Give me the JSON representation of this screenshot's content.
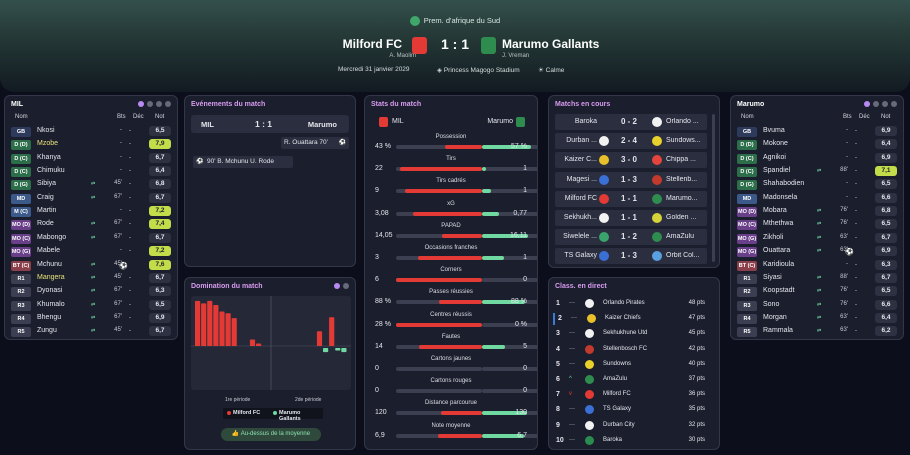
{
  "competition": "Prem. d'afrique du Sud",
  "home": {
    "name": "Milford FC",
    "coach": "A. Maolim",
    "short": "MIL"
  },
  "away": {
    "name": "Marumo Gallants",
    "coach": "J. Vreman",
    "short": "Marumo"
  },
  "score": "1 : 1",
  "date": "Mercredi 31 janvier 2029",
  "stadium": "Princess Magogo Stadium",
  "weather": "Calme",
  "colors": {
    "home": "#e33a36",
    "away": "#6fd9a1",
    "accent": "#d89cf0",
    "rating_high": "#c2dc4a"
  },
  "lineup_headers": {
    "name": "Nom",
    "bts": "Bts",
    "dec": "Déc",
    "note": "Not"
  },
  "home_lineup": [
    {
      "pos": "GB",
      "name": "Nkosi",
      "bts": "-",
      "dec": "-",
      "note": "6,5",
      "hl": false,
      "nh": ""
    },
    {
      "pos": "D (D)",
      "name": "Mzobe",
      "bts": "-",
      "dec": "-",
      "note": "7,9",
      "hl": true,
      "nh": "g"
    },
    {
      "pos": "D (C)",
      "name": "Khanya",
      "bts": "-",
      "dec": "-",
      "note": "6,7",
      "hl": false,
      "nh": ""
    },
    {
      "pos": "D (C)",
      "name": "Chimuku",
      "bts": "-",
      "dec": "-",
      "note": "6,4",
      "hl": false,
      "nh": ""
    },
    {
      "pos": "D (G)",
      "name": "Sibiya",
      "bts": "45'",
      "dec": "-",
      "note": "6,8",
      "hl": false,
      "nh": "",
      "sub": true
    },
    {
      "pos": "MD",
      "name": "Craig",
      "bts": "67'",
      "dec": "-",
      "note": "6,7",
      "hl": false,
      "nh": "",
      "sub": true
    },
    {
      "pos": "M (C)",
      "name": "Martin",
      "bts": "-",
      "dec": "-",
      "note": "7,2",
      "hl": false,
      "nh": "g"
    },
    {
      "pos": "MO (D)",
      "name": "Rode",
      "bts": "67'",
      "dec": "-",
      "note": "7,4",
      "hl": false,
      "nh": "g",
      "sub": true
    },
    {
      "pos": "MO (C)",
      "name": "Mabongo",
      "bts": "67'",
      "dec": "-",
      "note": "6,7",
      "hl": false,
      "nh": "",
      "sub": true
    },
    {
      "pos": "MO (G)",
      "name": "Mabele",
      "bts": "-",
      "dec": "-",
      "note": "7,2",
      "hl": false,
      "nh": "g"
    },
    {
      "pos": "BT (C)",
      "name": "Mchunu",
      "bts": "45'",
      "dec": "",
      "note": "7,6",
      "hl": false,
      "nh": "g",
      "sub": true,
      "ball": true
    },
    {
      "pos": "R1",
      "name": "Mangera",
      "bts": "45'",
      "dec": "-",
      "note": "6,7",
      "hl": true,
      "nh": "",
      "sub": true
    },
    {
      "pos": "R2",
      "name": "Dyonasi",
      "bts": "67'",
      "dec": "-",
      "note": "6,3",
      "hl": false,
      "nh": "",
      "sub": true
    },
    {
      "pos": "R3",
      "name": "Khumalo",
      "bts": "67'",
      "dec": "-",
      "note": "6,5",
      "hl": false,
      "nh": "",
      "sub": true
    },
    {
      "pos": "R4",
      "name": "Bhengu",
      "bts": "67'",
      "dec": "-",
      "note": "6,9",
      "hl": false,
      "nh": "",
      "sub": true
    },
    {
      "pos": "R5",
      "name": "Zungu",
      "bts": "45'",
      "dec": "-",
      "note": "6,7",
      "hl": false,
      "nh": "",
      "sub": true
    }
  ],
  "away_lineup": [
    {
      "pos": "GB",
      "name": "Bvuma",
      "bts": "-",
      "dec": "-",
      "note": "6,9",
      "nh": ""
    },
    {
      "pos": "D (D)",
      "name": "Mokone",
      "bts": "-",
      "dec": "-",
      "note": "6,4",
      "nh": ""
    },
    {
      "pos": "D (C)",
      "name": "Agnikoi",
      "bts": "-",
      "dec": "-",
      "note": "6,9",
      "nh": ""
    },
    {
      "pos": "D (C)",
      "name": "Spandiel",
      "bts": "88'",
      "dec": "-",
      "note": "7,1",
      "nh": "g",
      "sub": true
    },
    {
      "pos": "D (G)",
      "name": "Shahabodien",
      "bts": "-",
      "dec": "-",
      "note": "6,5",
      "nh": ""
    },
    {
      "pos": "MD",
      "name": "Madonsela",
      "bts": "-",
      "dec": "-",
      "note": "6,6",
      "nh": ""
    },
    {
      "pos": "MO (D)",
      "name": "Mobara",
      "bts": "76'",
      "dec": "-",
      "note": "6,8",
      "nh": "",
      "sub": true
    },
    {
      "pos": "MO (C)",
      "name": "Mthethwa",
      "bts": "76'",
      "dec": "-",
      "note": "6,5",
      "nh": "",
      "sub": true
    },
    {
      "pos": "MO (G)",
      "name": "Zikholi",
      "bts": "63'",
      "dec": "-",
      "note": "6,7",
      "nh": "",
      "sub": true
    },
    {
      "pos": "MO (G)",
      "name": "Ouattara",
      "bts": "63'",
      "dec": "",
      "note": "6,9",
      "nh": "",
      "sub": true,
      "ball": true
    },
    {
      "pos": "BT (C)",
      "name": "Karidioula",
      "bts": "-",
      "dec": "-",
      "note": "6,3",
      "nh": ""
    },
    {
      "pos": "R1",
      "name": "Siyasi",
      "bts": "88'",
      "dec": "-",
      "note": "6,7",
      "nh": "",
      "sub": true
    },
    {
      "pos": "R2",
      "name": "Koopstadt",
      "bts": "76'",
      "dec": "-",
      "note": "6,5",
      "nh": "",
      "sub": true
    },
    {
      "pos": "R3",
      "name": "Sono",
      "bts": "76'",
      "dec": "-",
      "note": "6,6",
      "nh": "",
      "sub": true
    },
    {
      "pos": "R4",
      "name": "Morgan",
      "bts": "63'",
      "dec": "-",
      "note": "6,4",
      "nh": "",
      "sub": true
    },
    {
      "pos": "R5",
      "name": "Rammala",
      "bts": "63'",
      "dec": "-",
      "note": "6,2",
      "nh": "",
      "sub": true
    }
  ],
  "events": {
    "title": "Evénements du match",
    "home": "MIL",
    "score": "1 : 1",
    "away": "Marumo",
    "goal_away": "R. Ouattara 70'",
    "goal_home": "90' B. Mchunu U. Rode"
  },
  "domination": {
    "title": "Domination du match",
    "period1": "1re période",
    "period2": "2de période",
    "legend_home": "Milford FC",
    "legend_away": "Marumo Gallants",
    "summary": "Au-dessus de la moyenne",
    "bars": [
      55,
      52,
      55,
      50,
      42,
      40,
      34,
      0,
      0,
      8,
      3,
      0,
      0,
      0,
      0,
      0,
      0,
      0,
      0,
      18,
      -5,
      35,
      -3,
      -5
    ]
  },
  "stats": {
    "title": "Stats du match",
    "home": "MIL",
    "away": "Marumo",
    "rows": [
      {
        "label": "Possession",
        "h": "43 %",
        "a": "57 %",
        "hv": 43,
        "av": 57
      },
      {
        "label": "Tirs",
        "h": "22",
        "a": "1",
        "hv": 22,
        "av": 1
      },
      {
        "label": "Tirs cadrés",
        "h": "9",
        "a": "1",
        "hv": 9,
        "av": 1
      },
      {
        "label": "xG",
        "h": "3,08",
        "a": "0,77",
        "hv": 3.08,
        "av": 0.77
      },
      {
        "label": "PAPAD",
        "h": "14,05",
        "a": "16,11",
        "hv": 14.05,
        "av": 16.11
      },
      {
        "label": "Occasions franches",
        "h": "3",
        "a": "1",
        "hv": 3,
        "av": 1
      },
      {
        "label": "Corners",
        "h": "6",
        "a": "0",
        "hv": 6,
        "av": 0
      },
      {
        "label": "Passes réussies",
        "h": "88 %",
        "a": "88 %",
        "hv": 88,
        "av": 88
      },
      {
        "label": "Centres réussis",
        "h": "28 %",
        "a": "0 %",
        "hv": 28,
        "av": 0
      },
      {
        "label": "Fautes",
        "h": "14",
        "a": "5",
        "hv": 14,
        "av": 5
      },
      {
        "label": "Cartons jaunes",
        "h": "0",
        "a": "0",
        "hv": 0,
        "av": 0
      },
      {
        "label": "Cartons rouges",
        "h": "0",
        "a": "0",
        "hv": 0,
        "av": 0
      },
      {
        "label": "Distance parcourue",
        "h": "120",
        "a": "130",
        "hv": 120,
        "av": 130
      },
      {
        "label": "Note moyenne",
        "h": "6,9",
        "a": "6,7",
        "hv": 6.9,
        "av": 6.7
      }
    ]
  },
  "live": {
    "title": "Matchs en cours",
    "matches": [
      {
        "home": "Baroka",
        "score": "0 - 2",
        "away": "Orlando ...",
        "hc": "#2a2e3e",
        "ac": "#f2f2f2"
      },
      {
        "home": "Durban ...",
        "score": "2 - 4",
        "away": "Sundows...",
        "hc": "#f2f2f2",
        "ac": "#e8d12a"
      },
      {
        "home": "Kaizer C...",
        "score": "3 - 0",
        "away": "Chippa ...",
        "hc": "#e8c12a",
        "ac": "#e3443b"
      },
      {
        "home": "Magesi ...",
        "score": "1 - 3",
        "away": "Stellenb...",
        "hc": "#3a6fd5",
        "ac": "#c23a2e"
      },
      {
        "home": "Milford FC",
        "score": "1 - 1",
        "away": "Marumo...",
        "hc": "#e33a36",
        "ac": "#2f8c4f"
      },
      {
        "home": "Sekhukh...",
        "score": "1 - 1",
        "away": "Golden ...",
        "hc": "#f2f2f2",
        "ac": "#d8d23a"
      },
      {
        "home": "Siwelele ...",
        "score": "1 - 2",
        "away": "AmaZulu",
        "hc": "#3aa36b",
        "ac": "#2f8c4f"
      },
      {
        "home": "TS Galaxy",
        "score": "1 - 3",
        "away": "Orbit Col...",
        "hc": "#3a6fd5",
        "ac": "#5aa0e0"
      }
    ]
  },
  "table": {
    "title": "Class. en direct",
    "rows": [
      {
        "rank": "1",
        "mv": "—",
        "team": "Orlando Pirates",
        "pts": "48 pts",
        "c": "#f2f2f2",
        "hl": false
      },
      {
        "rank": "2",
        "mv": "—",
        "team": "Kaizer Chiefs",
        "pts": "47 pts",
        "c": "#e8c12a",
        "hl": true
      },
      {
        "rank": "3",
        "mv": "—",
        "team": "Sekhukhune Utd",
        "pts": "45 pts",
        "c": "#f2f2f2",
        "hl": false
      },
      {
        "rank": "4",
        "mv": "—",
        "team": "Stellenbosch FC",
        "pts": "42 pts",
        "c": "#c23a2e",
        "hl": false
      },
      {
        "rank": "5",
        "mv": "—",
        "team": "Sundowns",
        "pts": "40 pts",
        "c": "#e8d12a",
        "hl": false
      },
      {
        "rank": "6",
        "mv": "^",
        "team": "AmaZulu",
        "pts": "37 pts",
        "c": "#2f8c4f",
        "hl": false
      },
      {
        "rank": "7",
        "mv": "v",
        "team": "Milford FC",
        "pts": "36 pts",
        "c": "#e33a36",
        "hl": false
      },
      {
        "rank": "8",
        "mv": "—",
        "team": "TS Galaxy",
        "pts": "35 pts",
        "c": "#3a6fd5",
        "hl": false
      },
      {
        "rank": "9",
        "mv": "—",
        "team": "Durban City",
        "pts": "32 pts",
        "c": "#f2f2f2",
        "hl": false
      },
      {
        "rank": "10",
        "mv": "—",
        "team": "Baroka",
        "pts": "30 pts",
        "c": "#2a8c4f",
        "hl": false
      }
    ]
  }
}
